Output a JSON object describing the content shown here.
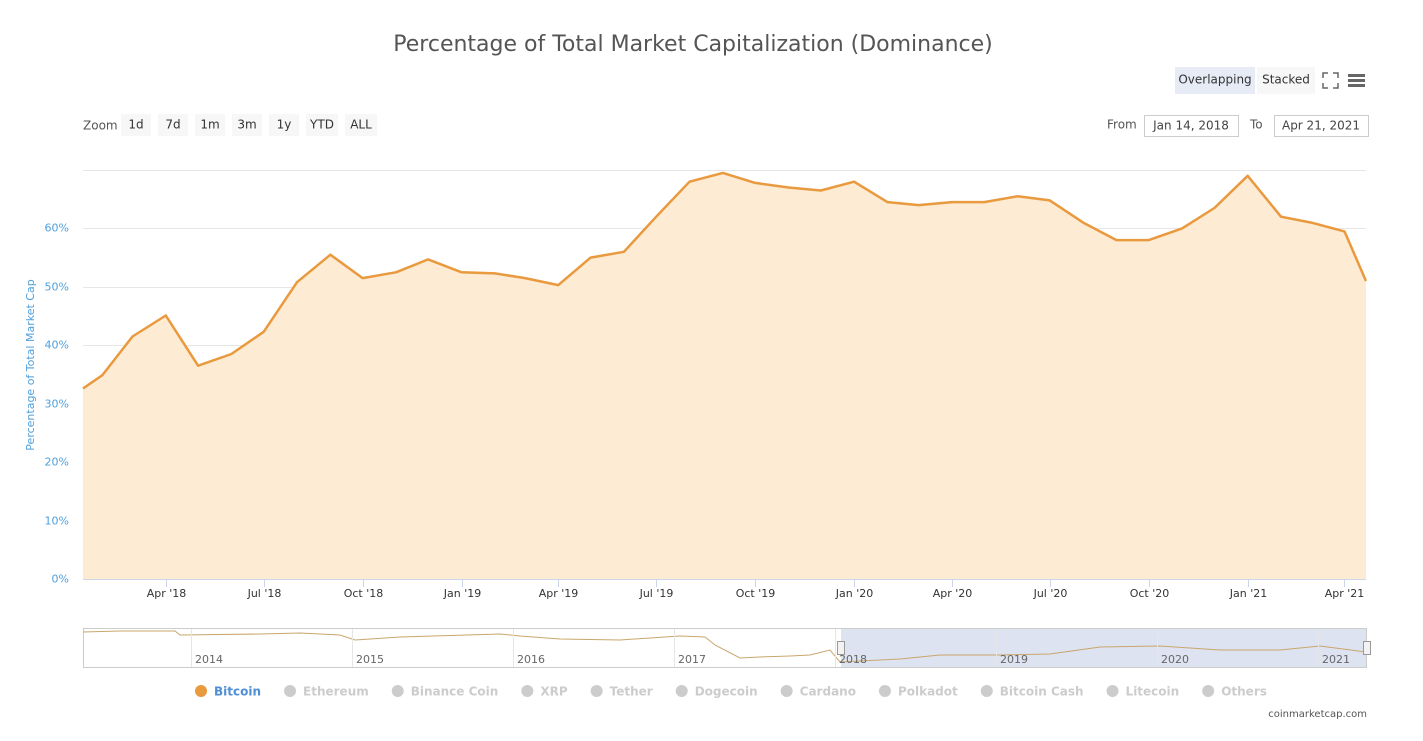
{
  "chart_data": {
    "type": "area",
    "title": "Percentage of Total Market Capitalization (Dominance)",
    "y_label": "Percentage of Total Market Cap",
    "view_buttons": [
      "Overlapping",
      "Stacked"
    ],
    "zoom_label": "Zoom",
    "zoom_buttons": [
      "1d",
      "7d",
      "1m",
      "3m",
      "1y",
      "YTD",
      "ALL"
    ],
    "range": {
      "from_label": "From",
      "from": "Jan 14, 2018",
      "to_label": "To",
      "to": "Apr 21, 2021"
    },
    "x": [
      "2018-01-14",
      "2018-02",
      "2018-03",
      "2018-04",
      "2018-05",
      "2018-06",
      "2018-07",
      "2018-08",
      "2018-09",
      "2018-10",
      "2018-11",
      "2018-12",
      "2019-01",
      "2019-02",
      "2019-03",
      "2019-04",
      "2019-05",
      "2019-06",
      "2019-07",
      "2019-08",
      "2019-09",
      "2019-10",
      "2019-11",
      "2019-12",
      "2020-01",
      "2020-02",
      "2020-03",
      "2020-04",
      "2020-05",
      "2020-06",
      "2020-07",
      "2020-08",
      "2020-09",
      "2020-10",
      "2020-11",
      "2020-12",
      "2021-01",
      "2021-02",
      "2021-03",
      "2021-04",
      "2021-04-21"
    ],
    "series": [
      {
        "name": "Bitcoin",
        "color": "#e9993e",
        "fill": "#fdebd3",
        "values": [
          32.6,
          34.9,
          41.5,
          45.1,
          36.5,
          38.5,
          42.3,
          50.8,
          55.5,
          51.5,
          52.5,
          54.7,
          52.5,
          52.3,
          51.5,
          50.3,
          55,
          56,
          62,
          68,
          69.5,
          67.8,
          67,
          66.5,
          68,
          64.5,
          64,
          64.5,
          64.5,
          65.5,
          64.8,
          61,
          58,
          58,
          60,
          63.5,
          69,
          62,
          61,
          59.5,
          51
        ]
      }
    ],
    "hidden_series": [
      "Ethereum",
      "Binance Coin",
      "XRP",
      "Tether",
      "Dogecoin",
      "Cardano",
      "Polkadot",
      "Bitcoin Cash",
      "Litecoin",
      "Others"
    ],
    "xlim": [
      "2018-01-14",
      "2021-04-21"
    ],
    "xticks": [
      {
        "value": "2018-04",
        "label": "Apr '18"
      },
      {
        "value": "2018-07",
        "label": "Jul '18"
      },
      {
        "value": "2018-10",
        "label": "Oct '18"
      },
      {
        "value": "2019-01",
        "label": "Jan '19"
      },
      {
        "value": "2019-04",
        "label": "Apr '19"
      },
      {
        "value": "2019-07",
        "label": "Jul '19"
      },
      {
        "value": "2019-10",
        "label": "Oct '19"
      },
      {
        "value": "2020-01",
        "label": "Jan '20"
      },
      {
        "value": "2020-04",
        "label": "Apr '20"
      },
      {
        "value": "2020-07",
        "label": "Jul '20"
      },
      {
        "value": "2020-10",
        "label": "Oct '20"
      },
      {
        "value": "2021-01",
        "label": "Jan '21"
      },
      {
        "value": "2021-04",
        "label": "Apr '21"
      }
    ],
    "ylim": [
      0,
      70
    ],
    "yticks": [
      {
        "value": 0,
        "label": "0%"
      },
      {
        "value": 10,
        "label": "10%"
      },
      {
        "value": 20,
        "label": "20%"
      },
      {
        "value": 30,
        "label": "30%"
      },
      {
        "value": 40,
        "label": "40%"
      },
      {
        "value": 50,
        "label": "50%"
      },
      {
        "value": 60,
        "label": "60%"
      }
    ],
    "grid": true,
    "navigator_labels": [
      "2014",
      "2015",
      "2016",
      "2017",
      "2018",
      "2019",
      "2020",
      "2021"
    ],
    "credit": "coinmarketcap.com"
  }
}
